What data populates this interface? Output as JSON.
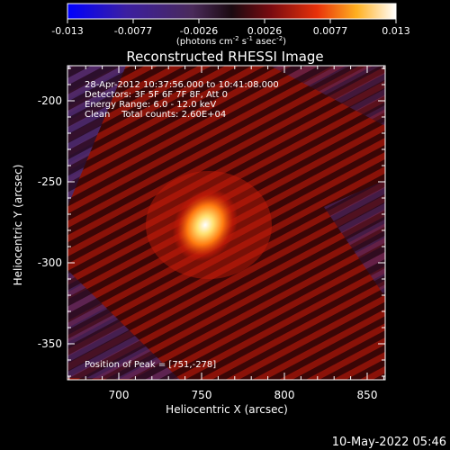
{
  "colorbar": {
    "ticks": [
      "-0.013",
      "-0.0077",
      "-0.0026",
      "0.0026",
      "0.0077",
      "0.013"
    ],
    "unit_label": "(photons cm",
    "unit_exp1": "-2",
    "unit_mid1": " s",
    "unit_exp2": "-1",
    "unit_mid2": " asec",
    "unit_exp3": "-2",
    "unit_end": ")"
  },
  "title": "Reconstructed RHESSI Image",
  "info": {
    "time_range": "28-Apr-2012 10:37:56.000 to 10:41:08.000",
    "detectors": "Detectors: 3F 5F 6F 7F 8F, Att 0",
    "energy": "Energy Range: 6.0 - 12.0 keV",
    "clean": "Clean    Total counts: 2.60E+04"
  },
  "peak_label": "Position of Peak = [751,-278]",
  "axes": {
    "xlabel": "Heliocentric X (arcsec)",
    "ylabel": "Heliocentric Y (arcsec)",
    "x_ticks": [
      "700",
      "750",
      "800",
      "850"
    ],
    "y_ticks": [
      "-200",
      "-250",
      "-300",
      "-350"
    ]
  },
  "footer_timestamp": "10-May-2022 05:46"
}
